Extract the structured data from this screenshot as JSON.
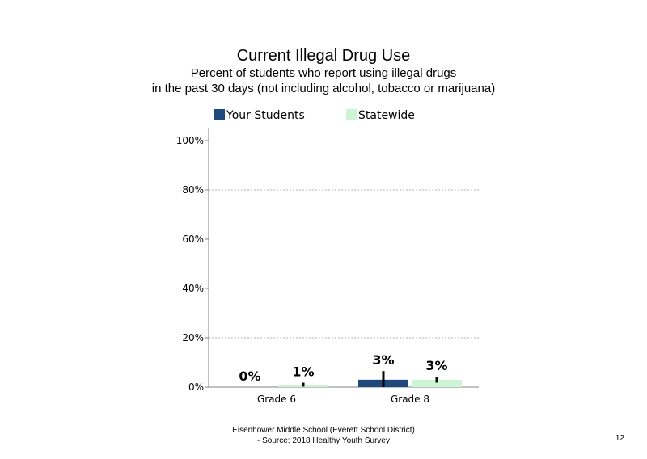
{
  "chart_data": {
    "type": "bar",
    "title": "Current Illegal Drug Use",
    "subtitle_lines": [
      "Percent of students who report using illegal drugs",
      "in the past 30 days (not including alcohol, tobacco or marijuana)"
    ],
    "categories": [
      "Grade 6",
      "Grade 8"
    ],
    "series": [
      {
        "name": "Your Students",
        "color": "#1f497d",
        "values": [
          0,
          3
        ],
        "labels": [
          "0%",
          "3%"
        ],
        "error": [
          0,
          3.5
        ]
      },
      {
        "name": "Statewide",
        "color": "#ccf5d6",
        "values": [
          1,
          3
        ],
        "labels": [
          "1%",
          "3%"
        ],
        "error": [
          0.8,
          1.2
        ]
      }
    ],
    "ylim": [
      0,
      100
    ],
    "yticks": [
      "0%",
      "20%",
      "40%",
      "60%",
      "80%",
      "100%"
    ],
    "ytick_values": [
      0,
      20,
      40,
      60,
      80,
      100
    ],
    "grid": true,
    "legend_position": "top"
  },
  "footer": {
    "line1": "Eisenhower Middle School (Everett School District)",
    "line2": "- Source: 2018 Healthy  Youth Survey"
  },
  "page_number": "12"
}
